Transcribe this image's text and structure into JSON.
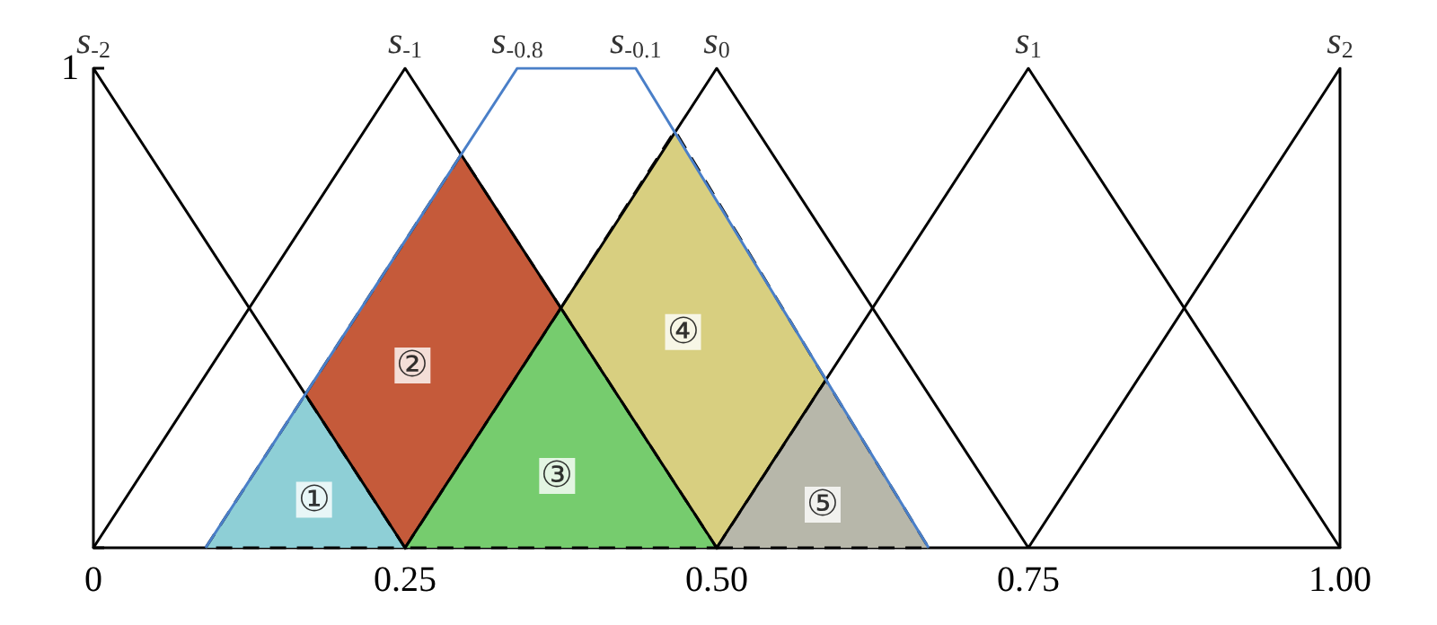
{
  "chart_data": {
    "type": "line",
    "xlim": [
      0,
      1
    ],
    "ylim": [
      0,
      1
    ],
    "xticks": [
      0,
      0.25,
      {
        "value": 0.5,
        "label": "0.50"
      },
      0.75,
      {
        "value": 1,
        "label": "1.00"
      }
    ],
    "yticks": [
      {
        "value": 0,
        "label": null
      },
      1
    ],
    "grid": false,
    "marker": "none",
    "series": [
      {
        "type": "area",
        "color": "#8ecfd6",
        "line_style": "dashed",
        "x": [
          0.09,
          0.17,
          0.25
        ],
        "values": [
          0,
          0.32,
          0
        ]
      },
      {
        "type": "area",
        "color": "#c55a3a",
        "line_style": "dashed",
        "x": [
          0.17,
          0.295,
          0.375,
          0.25
        ],
        "values": [
          0.32,
          0.82,
          0.5,
          0
        ]
      },
      {
        "type": "area",
        "color": "#76cc6e",
        "line_style": "dashed",
        "x": [
          0.25,
          0.375,
          0.5
        ],
        "values": [
          0,
          0.5,
          0
        ]
      },
      {
        "type": "area",
        "color": "#d8cf80",
        "line_style": "dashed",
        "x": [
          0.375,
          0.4665,
          0.5876,
          0.5
        ],
        "values": [
          0.5,
          0.87,
          0.35,
          0
        ]
      },
      {
        "type": "area",
        "color": "#b7b7aa",
        "line_style": "dashed",
        "x": [
          0.5,
          0.5876,
          0.67
        ],
        "values": [
          0,
          0.35,
          0
        ]
      },
      {
        "color": "#000000",
        "x": [
          0,
          0,
          0.25
        ],
        "values": [
          0,
          1,
          0
        ]
      },
      {
        "color": "#000000",
        "x": [
          0,
          0.25,
          0.5
        ],
        "values": [
          0,
          1,
          0
        ]
      },
      {
        "color": "#000000",
        "x": [
          0.25,
          0.5,
          0.75
        ],
        "values": [
          0,
          1,
          0
        ]
      },
      {
        "color": "#000000",
        "x": [
          0.5,
          0.75,
          1
        ],
        "values": [
          0,
          1,
          0
        ]
      },
      {
        "color": "#000000",
        "x": [
          0.75,
          1,
          1
        ],
        "values": [
          0,
          1,
          0
        ]
      },
      {
        "color": "#4a7fc8",
        "x": [
          0.09,
          0.34,
          0.435,
          0.67
        ],
        "values": [
          0,
          1,
          1,
          0
        ]
      }
    ],
    "annotations": [
      {
        "text": "s$_{-2}$",
        "x": 0,
        "y": 1
      },
      {
        "text": "s$_{-1}$",
        "x": 0.25,
        "y": 1
      },
      {
        "text": "s$_{-0.8}$",
        "x": 0.34,
        "y": 1
      },
      {
        "text": "s$_{-0.1}$",
        "x": 0.435,
        "y": 1
      },
      {
        "text": "s$_{0}$",
        "x": 0.5,
        "y": 1
      },
      {
        "text": "s$_{1}$",
        "x": 0.75,
        "y": 1
      },
      {
        "text": "s$_{2}$",
        "x": 1,
        "y": 1
      },
      {
        "text": "①",
        "x": 0.177,
        "y": 0.1
      },
      {
        "text": "②",
        "x": 0.256,
        "y": 0.38
      },
      {
        "text": "③",
        "x": 0.372,
        "y": 0.15
      },
      {
        "text": "④",
        "x": 0.473,
        "y": 0.45
      },
      {
        "text": "⑤",
        "x": 0.585,
        "y": 0.09
      }
    ]
  }
}
